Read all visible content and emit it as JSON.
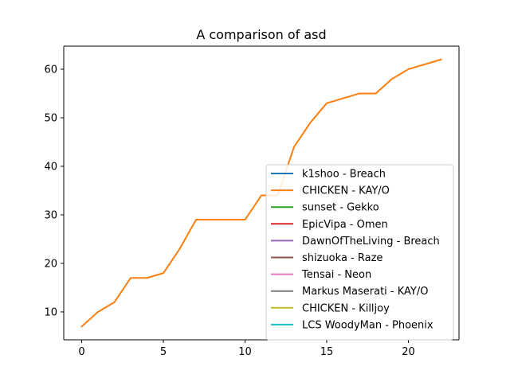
{
  "chart_data": {
    "type": "line",
    "title": "A comparison of asd",
    "xlabel": "",
    "ylabel": "",
    "xlim": [
      -1.1,
      23.1
    ],
    "ylim": [
      4.25,
      64.75
    ],
    "xticks": [
      0,
      5,
      10,
      15,
      20
    ],
    "yticks": [
      10,
      20,
      30,
      40,
      50,
      60
    ],
    "grid": false,
    "legend_position": "lower-right",
    "series": [
      {
        "name": "k1shoo - Breach",
        "color": "#1f77b4",
        "x": [],
        "y": []
      },
      {
        "name": "CHICKEN - KAY/O",
        "color": "#ff7f0e",
        "x": [
          0,
          1,
          2,
          3,
          4,
          5,
          6,
          7,
          8,
          9,
          10,
          11,
          12,
          13,
          14,
          15,
          16,
          17,
          18,
          19,
          20,
          21,
          22
        ],
        "y": [
          7,
          10,
          12,
          17,
          17,
          18,
          23,
          29,
          29,
          29,
          29,
          34,
          34,
          44,
          49,
          53,
          54,
          55,
          55,
          58,
          60,
          61,
          62
        ]
      },
      {
        "name": "sunset - Gekko",
        "color": "#2ca02c",
        "x": [],
        "y": []
      },
      {
        "name": "EpicVipa - Omen",
        "color": "#d62728",
        "x": [],
        "y": []
      },
      {
        "name": "DawnOfTheLiving - Breach",
        "color": "#9467bd",
        "x": [],
        "y": []
      },
      {
        "name": "shizuoka - Raze",
        "color": "#8c564b",
        "x": [],
        "y": []
      },
      {
        "name": "Tensai - Neon",
        "color": "#e377c2",
        "x": [],
        "y": []
      },
      {
        "name": "Markus Maserati - KAY/O",
        "color": "#7f7f7f",
        "x": [],
        "y": []
      },
      {
        "name": "CHICKEN - Killjoy",
        "color": "#bcbd22",
        "x": [],
        "y": []
      },
      {
        "name": "LCS WoodyMan - Phoenix",
        "color": "#17becf",
        "x": [],
        "y": []
      }
    ]
  }
}
